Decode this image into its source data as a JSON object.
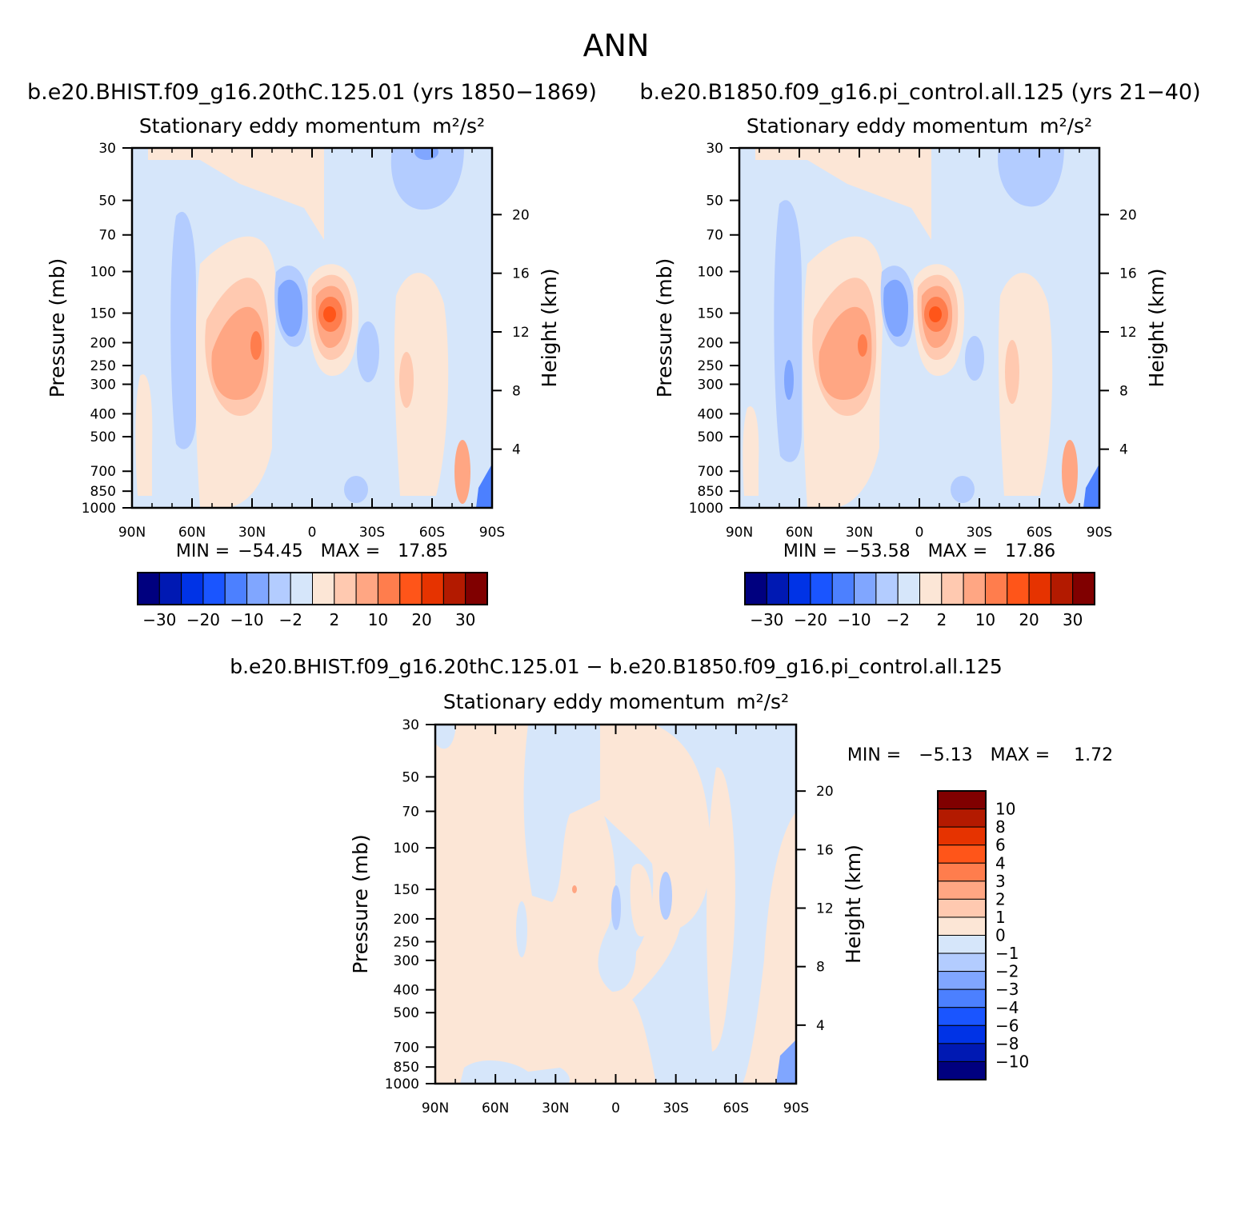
{
  "figure": {
    "title": "ANN",
    "panel1_header": "b.e20.BHIST.f09_g16.20thC.125.01 (yrs 1850−1869)",
    "panel2_header": "b.e20.B1850.f09_g16.pi_control.all.125 (yrs 21−40)",
    "panel3_header": "b.e20.BHIST.f09_g16.20thC.125.01 − b.e20.B1850.f09_g16.pi_control.all.125"
  },
  "colors": {
    "main_scale": [
      "#00007f",
      "#0019b3",
      "#0033e6",
      "#1a55ff",
      "#4c80ff",
      "#80a6ff",
      "#b3ccff",
      "#d6e6fa",
      "#fce6d6",
      "#ffc9b0",
      "#ffa683",
      "#ff7d4d",
      "#ff5519",
      "#e63300",
      "#b31a00",
      "#800000"
    ],
    "diff_scale": [
      "#00007f",
      "#0019b3",
      "#0033e6",
      "#1a55ff",
      "#4c80ff",
      "#80a6ff",
      "#b3ccff",
      "#d6e6fa",
      "#fce6d6",
      "#ffc9b0",
      "#ffa683",
      "#ff7d4d",
      "#ff5519",
      "#e63300",
      "#b31a00",
      "#800000"
    ]
  },
  "chart_data": [
    {
      "type": "heatmap",
      "title": "Stationary eddy momentum",
      "units": "m²/s²",
      "ylabel": "Pressure (mb)",
      "ylabel_right": "Height (km)",
      "x_tick_labels": [
        "90N",
        "60N",
        "30N",
        "0",
        "30S",
        "60S",
        "90S"
      ],
      "y_tick_labels": [
        "30",
        "50",
        "70",
        "100",
        "150",
        "200",
        "250",
        "300",
        "400",
        "500",
        "700",
        "850",
        "1000"
      ],
      "y_right_tick_labels": [
        "20",
        "16",
        "12",
        "8",
        "4"
      ],
      "stats": {
        "min_label": "MIN =",
        "min": "−54.45",
        "max_label": "MAX =",
        "max": "17.85"
      },
      "colorbar_labels": [
        "−30",
        "−20",
        "−10",
        "−2",
        "2",
        "10",
        "20",
        "30"
      ],
      "features": [
        {
          "desc": "positive max near 10S",
          "lat": -8,
          "p": 150,
          "value": 17.85
        },
        {
          "desc": "negative near 15N",
          "lat": 15,
          "p": 150,
          "value": -15
        },
        {
          "desc": "positive lobe near 30N",
          "lat": 28,
          "p": 250,
          "value": 10
        }
      ]
    },
    {
      "type": "heatmap",
      "title": "Stationary eddy momentum",
      "units": "m²/s²",
      "ylabel": "Pressure (mb)",
      "ylabel_right": "Height (km)",
      "x_tick_labels": [
        "90N",
        "60N",
        "30N",
        "0",
        "30S",
        "60S",
        "90S"
      ],
      "y_tick_labels": [
        "30",
        "50",
        "70",
        "100",
        "150",
        "200",
        "250",
        "300",
        "400",
        "500",
        "700",
        "850",
        "1000"
      ],
      "y_right_tick_labels": [
        "20",
        "16",
        "12",
        "8",
        "4"
      ],
      "stats": {
        "min_label": "MIN =",
        "min": "−53.58",
        "max_label": "MAX =",
        "max": "17.86"
      },
      "colorbar_labels": [
        "−30",
        "−20",
        "−10",
        "−2",
        "2",
        "10",
        "20",
        "30"
      ]
    },
    {
      "type": "heatmap",
      "title": "Stationary eddy momentum",
      "units": "m²/s²",
      "ylabel": "Pressure (mb)",
      "ylabel_right": "Height (km)",
      "x_tick_labels": [
        "90N",
        "60N",
        "30N",
        "0",
        "30S",
        "60S",
        "90S"
      ],
      "y_tick_labels": [
        "30",
        "50",
        "70",
        "100",
        "150",
        "200",
        "250",
        "300",
        "400",
        "500",
        "700",
        "850",
        "1000"
      ],
      "y_right_tick_labels": [
        "20",
        "16",
        "12",
        "8",
        "4"
      ],
      "stats": {
        "min_label": "MIN =",
        "min": "−5.13",
        "max_label": "MAX =",
        "max": "1.72"
      },
      "colorbar_labels": [
        "10",
        "8",
        "6",
        "4",
        "3",
        "2",
        "1",
        "0",
        "−1",
        "−2",
        "−3",
        "−4",
        "−6",
        "−8",
        "−10"
      ]
    }
  ]
}
